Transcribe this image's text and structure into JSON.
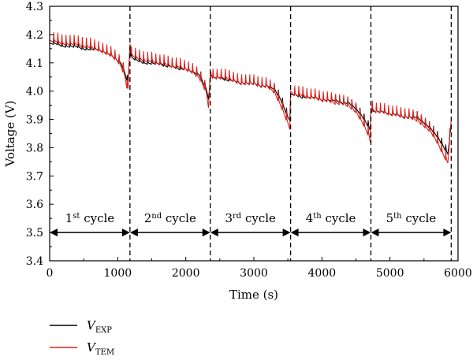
{
  "chart_data": {
    "type": "line",
    "xlabel": "Time (s)",
    "ylabel": "Voltage (V)",
    "xlim": [
      0,
      6000
    ],
    "ylim": [
      3.4,
      4.3
    ],
    "x_ticks": [
      0,
      1000,
      2000,
      3000,
      4000,
      5000,
      6000
    ],
    "y_ticks": [
      3.4,
      3.5,
      3.6,
      3.7,
      3.8,
      3.9,
      4.0,
      4.1,
      4.2,
      4.3
    ],
    "y_tick_labels": [
      "3.4",
      "3.5",
      "3.6",
      "3.7",
      "3.8",
      "3.9",
      "4.0",
      "4.1",
      "4.2",
      "4.3"
    ],
    "grid": false,
    "legend_position": "below-left",
    "cycle_boundaries": [
      0,
      1180,
      2360,
      3540,
      4720,
      5900
    ],
    "cycles": [
      {
        "label": "1",
        "suffix": "st",
        "word": "cycle"
      },
      {
        "label": "2",
        "suffix": "nd",
        "word": "cycle"
      },
      {
        "label": "3",
        "suffix": "rd",
        "word": "cycle"
      },
      {
        "label": "4",
        "suffix": "th",
        "word": "cycle"
      },
      {
        "label": "5",
        "suffix": "th",
        "word": "cycle"
      }
    ],
    "cycle_arrow_y": 3.5,
    "series": [
      {
        "name_main": "V",
        "name_sub": "EXP",
        "color": "#000000",
        "x": [
          0,
          100,
          200,
          300,
          400,
          500,
          600,
          700,
          800,
          900,
          1000,
          1050,
          1100,
          1150,
          1180,
          1200,
          1300,
          1400,
          1500,
          1600,
          1700,
          1800,
          1900,
          2000,
          2100,
          2200,
          2300,
          2340,
          2360,
          2400,
          2500,
          2600,
          2700,
          2800,
          2900,
          3000,
          3100,
          3200,
          3300,
          3400,
          3500,
          3530,
          3540,
          3600,
          3700,
          3800,
          3900,
          4000,
          4100,
          4200,
          4300,
          4400,
          4500,
          4600,
          4700,
          4710,
          4720,
          4800,
          4900,
          5000,
          5100,
          5200,
          5300,
          5400,
          5500,
          5600,
          5700,
          5800,
          5850,
          5900
        ],
        "y": [
          4.17,
          4.17,
          4.16,
          4.16,
          4.16,
          4.15,
          4.15,
          4.15,
          4.14,
          4.13,
          4.11,
          4.1,
          4.07,
          4.03,
          4.15,
          4.12,
          4.11,
          4.1,
          4.1,
          4.1,
          4.09,
          4.09,
          4.08,
          4.08,
          4.07,
          4.06,
          4.01,
          3.97,
          4.06,
          4.05,
          4.05,
          4.04,
          4.04,
          4.03,
          4.03,
          4.03,
          4.02,
          4.02,
          4.01,
          3.97,
          3.91,
          3.9,
          3.99,
          3.99,
          3.98,
          3.98,
          3.98,
          3.97,
          3.97,
          3.97,
          3.96,
          3.96,
          3.94,
          3.91,
          3.87,
          3.86,
          3.93,
          3.93,
          3.93,
          3.92,
          3.92,
          3.91,
          3.91,
          3.91,
          3.89,
          3.87,
          3.84,
          3.8,
          3.78,
          3.88
        ]
      },
      {
        "name_main": "V",
        "name_sub": "TEM",
        "color": "#e0201b",
        "x": [
          0,
          100,
          200,
          300,
          400,
          500,
          600,
          700,
          800,
          900,
          1000,
          1050,
          1100,
          1150,
          1180,
          1200,
          1300,
          1400,
          1500,
          1600,
          1700,
          1800,
          1900,
          2000,
          2100,
          2200,
          2300,
          2340,
          2360,
          2400,
          2500,
          2600,
          2700,
          2800,
          2900,
          3000,
          3100,
          3200,
          3300,
          3400,
          3500,
          3530,
          3540,
          3600,
          3700,
          3800,
          3900,
          4000,
          4100,
          4200,
          4300,
          4400,
          4500,
          4600,
          4700,
          4710,
          4720,
          4800,
          4900,
          5000,
          5100,
          5200,
          5300,
          5400,
          5500,
          5600,
          5700,
          5800,
          5850,
          5900
        ],
        "y": [
          4.18,
          4.18,
          4.17,
          4.17,
          4.17,
          4.16,
          4.16,
          4.15,
          4.14,
          4.13,
          4.11,
          4.09,
          4.06,
          4.0,
          4.17,
          4.13,
          4.12,
          4.11,
          4.11,
          4.1,
          4.1,
          4.09,
          4.09,
          4.08,
          4.07,
          4.05,
          4.0,
          3.94,
          4.07,
          4.05,
          4.05,
          4.05,
          4.04,
          4.03,
          4.03,
          4.03,
          4.02,
          4.02,
          4.0,
          3.95,
          3.89,
          3.87,
          4.0,
          3.99,
          3.99,
          3.98,
          3.98,
          3.97,
          3.97,
          3.96,
          3.96,
          3.95,
          3.93,
          3.89,
          3.84,
          3.82,
          3.94,
          3.93,
          3.93,
          3.92,
          3.92,
          3.91,
          3.91,
          3.9,
          3.88,
          3.86,
          3.82,
          3.77,
          3.75,
          3.9
        ]
      }
    ]
  }
}
